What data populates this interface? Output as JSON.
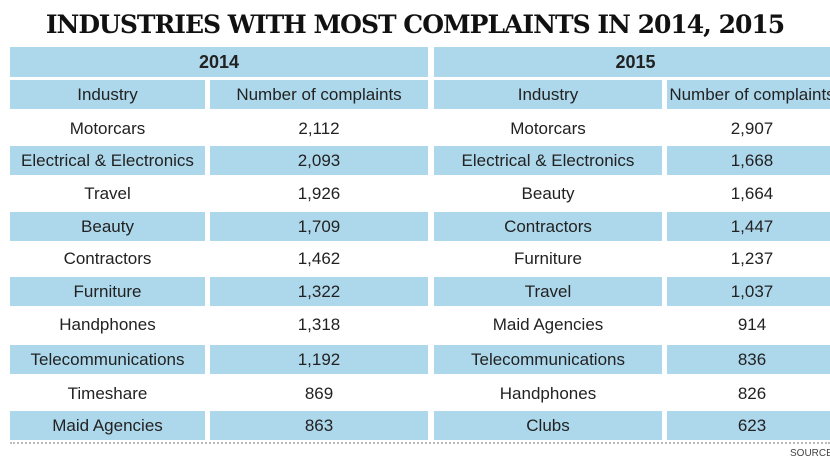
{
  "title": "INDUSTRIES WITH MOST COMPLAINTS IN 2014, 2015",
  "sections": [
    {
      "year": "2014",
      "header": [
        "Industry",
        "Number of complaints"
      ],
      "rows": [
        [
          "Motorcars",
          "2,112"
        ],
        [
          "Electrical & Electronics",
          "2,093"
        ],
        [
          "Travel",
          "1,926"
        ],
        [
          "Beauty",
          "1,709"
        ],
        [
          "Contractors",
          "1,462"
        ],
        [
          "Furniture",
          "1,322"
        ],
        [
          "Handphones",
          "1,318"
        ],
        [
          "Telecommunications",
          "1,192"
        ],
        [
          "Timeshare",
          "869"
        ],
        [
          "Maid Agencies",
          "863"
        ]
      ]
    },
    {
      "year": "2015",
      "header": [
        "Industry",
        "Number of complaints"
      ],
      "rows": [
        [
          "Motorcars",
          "2,907"
        ],
        [
          "Electrical & Electronics",
          "1,668"
        ],
        [
          "Beauty",
          "1,664"
        ],
        [
          "Contractors",
          "1,447"
        ],
        [
          "Furniture",
          "1,237"
        ],
        [
          "Travel",
          "1,037"
        ],
        [
          "Maid Agencies",
          "914"
        ],
        [
          "Telecommunications",
          "836"
        ],
        [
          "Handphones",
          "826"
        ],
        [
          "Clubs",
          "623"
        ]
      ]
    }
  ],
  "source": "SOURCE"
}
